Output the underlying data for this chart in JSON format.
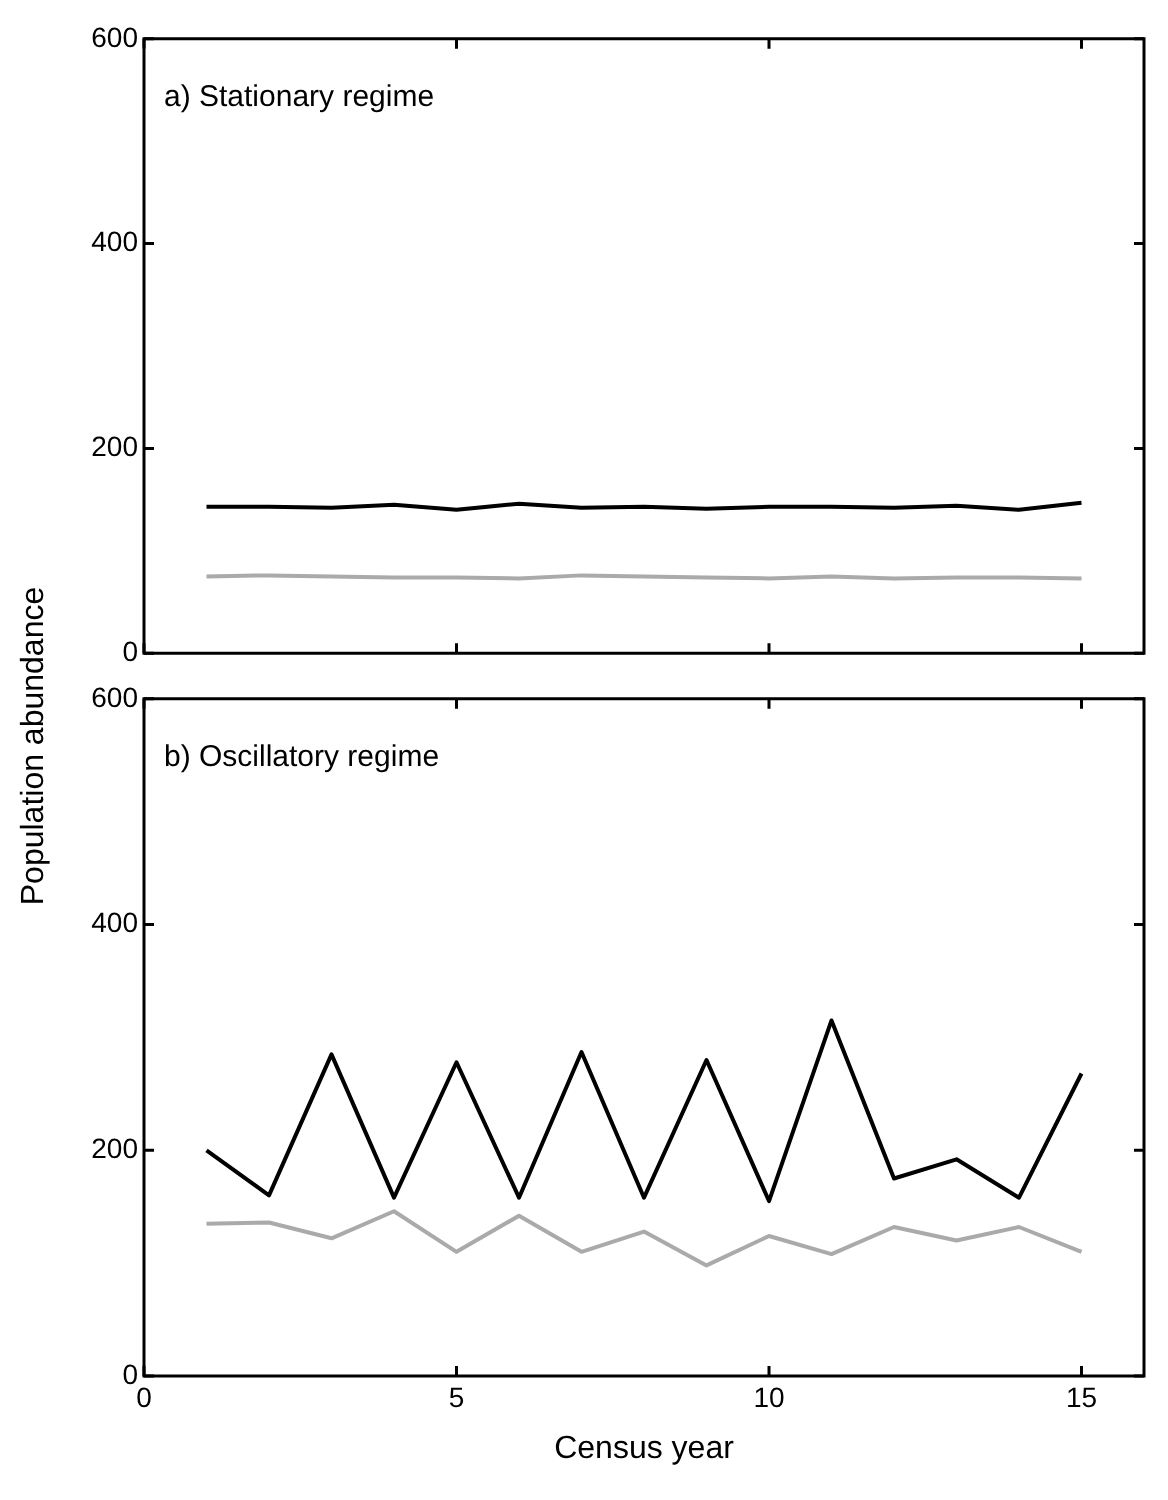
{
  "chart_data": [
    {
      "type": "line",
      "title": "a) Stationary regime",
      "ylabel": "Population abundance",
      "x": [
        1,
        2,
        3,
        4,
        5,
        6,
        7,
        8,
        9,
        10,
        11,
        12,
        13,
        14,
        15
      ],
      "series": [
        {
          "color": "#000000",
          "values": [
            143,
            143,
            142,
            145,
            140,
            146,
            142,
            143,
            141,
            143,
            143,
            142,
            144,
            140,
            147
          ]
        },
        {
          "color": "#aaaaaa",
          "values": [
            75,
            76,
            75,
            74,
            74,
            73,
            76,
            75,
            74,
            73,
            75,
            73,
            74,
            74,
            73
          ]
        }
      ],
      "xlim": [
        0,
        16
      ],
      "xticks": [
        0,
        5,
        10,
        15
      ],
      "ylim": [
        0,
        600
      ],
      "yticks": [
        0,
        200,
        400,
        600
      ],
      "tick_labels": "y",
      "grid": false,
      "legend": false,
      "marker": "none",
      "line_style": "solid"
    },
    {
      "type": "line",
      "title": "b) Oscillatory regime",
      "xlabel": "Census year",
      "x": [
        1,
        2,
        3,
        4,
        5,
        6,
        7,
        8,
        9,
        10,
        11,
        12,
        13,
        14,
        15
      ],
      "series": [
        {
          "color": "#000000",
          "values": [
            200,
            160,
            285,
            158,
            278,
            158,
            287,
            158,
            280,
            155,
            315,
            175,
            192,
            158,
            268
          ]
        },
        {
          "color": "#aaaaaa",
          "values": [
            135,
            136,
            122,
            146,
            110,
            142,
            110,
            128,
            98,
            124,
            108,
            132,
            120,
            132,
            110
          ]
        }
      ],
      "xlim": [
        0,
        16
      ],
      "xticks": [
        0,
        5,
        10,
        15
      ],
      "ylim": [
        0,
        600
      ],
      "yticks": [
        0,
        200,
        400,
        600
      ],
      "grid": false,
      "legend": false,
      "marker": "none",
      "line_style": "solid"
    }
  ]
}
